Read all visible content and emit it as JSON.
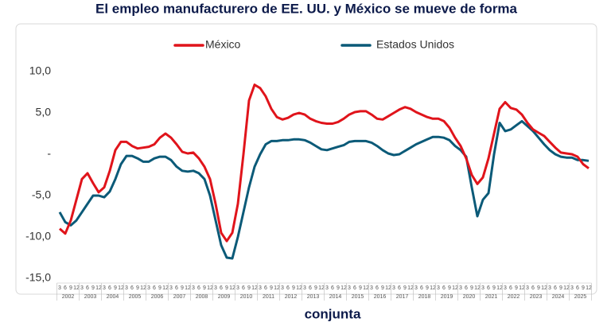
{
  "chart_data": {
    "type": "line",
    "title_lines": [
      "El empleo manufacturero de EE. UU. y México se mueve de forma",
      "conjunta"
    ],
    "quarter_labels": [
      "3",
      "6",
      "9",
      "12"
    ],
    "years": [
      "2002",
      "2003",
      "2004",
      "2005",
      "2006",
      "2007",
      "2008",
      "2009",
      "2010",
      "2011",
      "2012",
      "2013",
      "2014",
      "2015",
      "2016",
      "2017",
      "2018",
      "2019",
      "2020",
      "2021",
      "2022",
      "2023",
      "2024",
      "2025"
    ],
    "ylim": [
      -15,
      10
    ],
    "yticks": [
      {
        "value": -15,
        "label": "-15,0"
      },
      {
        "value": -10,
        "label": "-10,0"
      },
      {
        "value": -5,
        "label": "-5,0"
      },
      {
        "value": 0,
        "label": "-"
      },
      {
        "value": 5,
        "label": "5,0"
      },
      {
        "value": 10,
        "label": "10,0"
      }
    ],
    "grid": false,
    "legend": "top",
    "series": [
      {
        "name": "México",
        "color": "#e0141b",
        "values": [
          -9.0,
          -9.6,
          -8.0,
          -5.5,
          -3.0,
          -2.3,
          -3.5,
          -4.6,
          -4.0,
          -2.0,
          0.5,
          1.5,
          1.5,
          1.0,
          0.7,
          0.8,
          0.9,
          1.2,
          2.0,
          2.5,
          2.0,
          1.2,
          0.3,
          0.1,
          0.2,
          -0.5,
          -1.5,
          -3.0,
          -6.0,
          -9.5,
          -10.5,
          -9.5,
          -6.0,
          0.0,
          6.5,
          8.4,
          8.0,
          7.0,
          5.5,
          4.5,
          4.2,
          4.4,
          4.8,
          5.0,
          4.8,
          4.3,
          4.0,
          3.8,
          3.7,
          3.7,
          3.9,
          4.3,
          4.8,
          5.1,
          5.2,
          5.2,
          4.8,
          4.3,
          4.2,
          4.6,
          5.0,
          5.4,
          5.7,
          5.5,
          5.1,
          4.8,
          4.5,
          4.3,
          4.3,
          4.0,
          3.2,
          2.0,
          1.0,
          -0.5,
          -2.5,
          -3.6,
          -2.8,
          -0.5,
          2.5,
          5.5,
          6.3,
          5.6,
          5.4,
          4.8,
          3.8,
          3.0,
          2.6,
          2.2,
          1.5,
          0.8,
          0.2,
          0.1,
          0.0,
          -0.3,
          -1.2,
          -1.7
        ]
      },
      {
        "name": "Estados Unidos",
        "color": "#0b5a78",
        "values": [
          -7.0,
          -8.2,
          -8.6,
          -8.0,
          -7.0,
          -6.0,
          -5.0,
          -5.0,
          -5.2,
          -4.5,
          -3.0,
          -1.2,
          -0.2,
          -0.2,
          -0.5,
          -0.9,
          -0.9,
          -0.5,
          -0.3,
          -0.3,
          -0.7,
          -1.5,
          -2.0,
          -2.1,
          -2.0,
          -2.3,
          -3.0,
          -5.0,
          -8.0,
          -11.0,
          -12.5,
          -12.6,
          -10.0,
          -7.0,
          -4.0,
          -1.5,
          0.0,
          1.2,
          1.6,
          1.6,
          1.7,
          1.7,
          1.8,
          1.8,
          1.7,
          1.4,
          1.0,
          0.6,
          0.5,
          0.7,
          0.9,
          1.1,
          1.5,
          1.6,
          1.6,
          1.6,
          1.4,
          1.0,
          0.5,
          0.1,
          -0.1,
          0.0,
          0.4,
          0.8,
          1.2,
          1.5,
          1.8,
          2.1,
          2.1,
          2.0,
          1.7,
          1.0,
          0.5,
          -0.3,
          -4.0,
          -7.5,
          -5.5,
          -4.7,
          0.0,
          3.8,
          2.8,
          3.0,
          3.5,
          4.0,
          3.4,
          2.8,
          2.0,
          1.2,
          0.5,
          0.0,
          -0.3,
          -0.4,
          -0.4,
          -0.7,
          -0.7,
          -0.8
        ]
      }
    ]
  }
}
